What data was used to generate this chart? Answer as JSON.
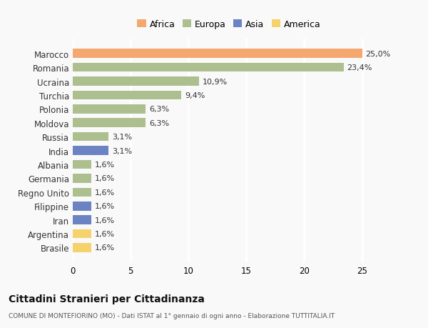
{
  "categories": [
    "Marocco",
    "Romania",
    "Ucraina",
    "Turchia",
    "Polonia",
    "Moldova",
    "Russia",
    "India",
    "Albania",
    "Germania",
    "Regno Unito",
    "Filippine",
    "Iran",
    "Argentina",
    "Brasile"
  ],
  "values": [
    25.0,
    23.4,
    10.9,
    9.4,
    6.3,
    6.3,
    3.1,
    3.1,
    1.6,
    1.6,
    1.6,
    1.6,
    1.6,
    1.6,
    1.6
  ],
  "labels": [
    "25,0%",
    "23,4%",
    "10,9%",
    "9,4%",
    "6,3%",
    "6,3%",
    "3,1%",
    "3,1%",
    "1,6%",
    "1,6%",
    "1,6%",
    "1,6%",
    "1,6%",
    "1,6%",
    "1,6%"
  ],
  "continents": [
    "Africa",
    "Europa",
    "Europa",
    "Europa",
    "Europa",
    "Europa",
    "Europa",
    "Asia",
    "Europa",
    "Europa",
    "Europa",
    "Asia",
    "Asia",
    "America",
    "America"
  ],
  "colors": {
    "Africa": "#F4A870",
    "Europa": "#ADBF8E",
    "Asia": "#6B83C2",
    "America": "#F5D26B"
  },
  "legend_order": [
    "Africa",
    "Europa",
    "Asia",
    "America"
  ],
  "title": "Cittadini Stranieri per Cittadinanza",
  "subtitle": "COMUNE DI MONTEFIORINO (MO) - Dati ISTAT al 1° gennaio di ogni anno - Elaborazione TUTTITALIA.IT",
  "xlim": [
    0,
    27
  ],
  "xticks": [
    0,
    5,
    10,
    15,
    20,
    25
  ],
  "background_color": "#f9f9f9",
  "grid_color": "#ffffff",
  "bar_height": 0.65
}
